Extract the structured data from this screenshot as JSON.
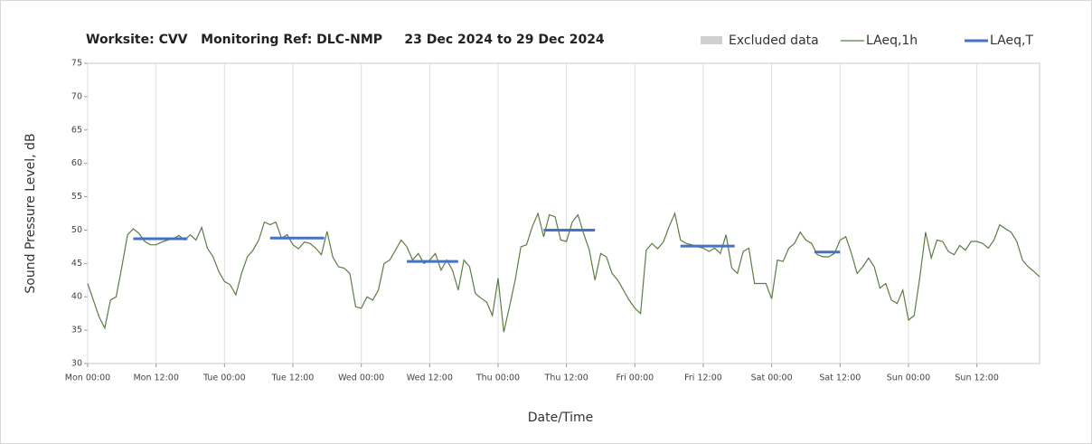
{
  "chart_data": {
    "type": "line",
    "title": "Worksite: CVV   Monitoring Ref: DLC-NMP     23 Dec 2024 to 29 Dec 2024",
    "x_label": "Date/Time",
    "y_label": "Sound Pressure Level, dB",
    "xlim": [
      0,
      167
    ],
    "ylim": [
      30,
      75
    ],
    "yticks": [
      30,
      35,
      40,
      45,
      50,
      55,
      60,
      65,
      70,
      75
    ],
    "xticks": [
      {
        "value": 0,
        "label": "Mon 00:00"
      },
      {
        "value": 12,
        "label": "Mon 12:00"
      },
      {
        "value": 24,
        "label": "Tue 00:00"
      },
      {
        "value": 36,
        "label": "Tue 12:00"
      },
      {
        "value": 48,
        "label": "Wed 00:00"
      },
      {
        "value": 60,
        "label": "Wed 12:00"
      },
      {
        "value": 72,
        "label": "Thu 00:00"
      },
      {
        "value": 84,
        "label": "Thu 12:00"
      },
      {
        "value": 96,
        "label": "Fri 00:00"
      },
      {
        "value": 108,
        "label": "Fri 12:00"
      },
      {
        "value": 120,
        "label": "Sat 00:00"
      },
      {
        "value": 132,
        "label": "Sat 12:00"
      },
      {
        "value": 144,
        "label": "Sun 00:00"
      },
      {
        "value": 156,
        "label": "Sun 12:00"
      }
    ],
    "grid": "x",
    "legend": [
      {
        "name": "Excluded data",
        "color": "#d0d0d0"
      }
    ],
    "series": [
      {
        "name": "LAeq,1h",
        "color": "#5b7d45",
        "kind": "line",
        "x": [
          0,
          1,
          2,
          3,
          4,
          5,
          6,
          7,
          8,
          9,
          10,
          11,
          12,
          13,
          14,
          15,
          16,
          17,
          18,
          19,
          20,
          21,
          22,
          23,
          24,
          25,
          26,
          27,
          28,
          29,
          30,
          31,
          32,
          33,
          34,
          35,
          36,
          37,
          38,
          39,
          40,
          41,
          42,
          43,
          44,
          45,
          46,
          47,
          48,
          49,
          50,
          51,
          52,
          53,
          54,
          55,
          56,
          57,
          58,
          59,
          60,
          61,
          62,
          63,
          64,
          65,
          66,
          67,
          68,
          69,
          70,
          71,
          72,
          73,
          74,
          75,
          76,
          77,
          78,
          79,
          80,
          81,
          82,
          83,
          84,
          85,
          86,
          87,
          88,
          89,
          90,
          91,
          92,
          93,
          94,
          95,
          96,
          97,
          98,
          99,
          100,
          101,
          102,
          103,
          104,
          105,
          106,
          107,
          108,
          109,
          110,
          111,
          112,
          113,
          114,
          115,
          116,
          117,
          118,
          119,
          120,
          121,
          122,
          123,
          124,
          125,
          126,
          127,
          128,
          129,
          130,
          131,
          132,
          133,
          134,
          135,
          136,
          137,
          138,
          139,
          140,
          141,
          142,
          143,
          144,
          145,
          146,
          147,
          148,
          149,
          150,
          151,
          152,
          153,
          154,
          155,
          156,
          157,
          158,
          159,
          160,
          161,
          162,
          163,
          164,
          165,
          166,
          167
        ],
        "values": [
          42,
          39.5,
          37,
          35.3,
          39.5,
          40,
          44.5,
          49.3,
          50.2,
          49.5,
          48.3,
          47.8,
          47.8,
          48.2,
          48.5,
          48.7,
          49.2,
          48.5,
          49.3,
          48.5,
          50.4,
          47.3,
          46,
          43.8,
          42.3,
          41.8,
          40.3,
          43.5,
          46,
          47,
          48.5,
          51.2,
          50.8,
          51.2,
          48.8,
          49.3,
          47.8,
          47.2,
          48.2,
          48,
          47.3,
          46.3,
          49.8,
          46,
          44.5,
          44.3,
          43.5,
          38.5,
          38.3,
          40,
          39.5,
          41,
          45,
          45.5,
          47,
          48.5,
          47.5,
          45.5,
          46.5,
          45,
          45.5,
          46.5,
          44,
          45.5,
          44,
          41,
          45.5,
          44.5,
          40.5,
          39.8,
          39.2,
          37.2,
          42.8,
          34.7,
          38.5,
          42.5,
          47.5,
          47.8,
          50.5,
          52.5,
          49,
          52.3,
          52,
          48.5,
          48.3,
          51.2,
          52.3,
          49.5,
          47,
          42.5,
          46.5,
          46,
          43.5,
          42.5,
          41,
          39.5,
          38.3,
          37.5,
          47,
          48,
          47.2,
          48.2,
          50.5,
          52.5,
          48.5,
          48,
          47.8,
          47.5,
          47.3,
          46.8,
          47.3,
          46.5,
          49.3,
          44.3,
          43.5,
          46.8,
          47.3,
          42,
          42,
          42,
          39.7,
          45.5,
          45.3,
          47.3,
          48,
          49.7,
          48.5,
          48,
          46.3,
          46,
          46,
          46.5,
          48.5,
          49,
          46.5,
          43.5,
          44.5,
          45.8,
          44.5,
          41.3,
          42,
          39.5,
          39,
          41,
          36.5,
          37.2,
          43,
          49.7,
          45.8,
          48.5,
          48.3,
          46.8,
          46.3,
          47.7,
          47,
          48.3,
          48.3,
          48,
          47.3,
          48.5,
          50.8,
          50.2,
          49.7,
          48.3,
          45.5,
          44.5,
          43.8,
          43
        ]
      },
      {
        "name": "LAeq,T",
        "color": "#4472c4",
        "kind": "segments",
        "x_start": [
          8,
          32,
          56,
          80,
          104,
          127.5
        ],
        "x_end": [
          17.5,
          41.5,
          65,
          89,
          113.5,
          132
        ],
        "values": [
          48.7,
          48.8,
          45.3,
          50,
          47.6,
          46.7
        ]
      }
    ]
  }
}
